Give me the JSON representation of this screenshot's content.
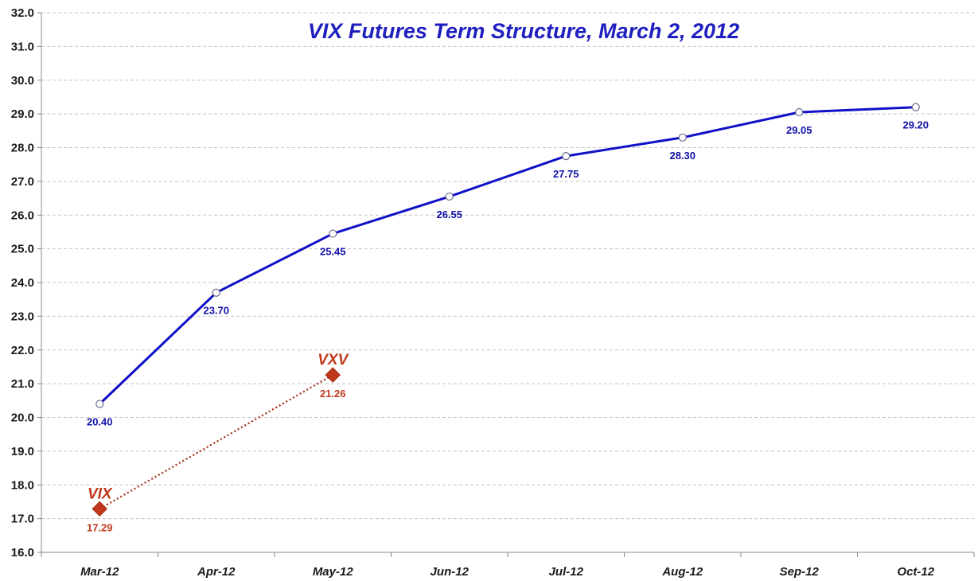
{
  "chart_data": {
    "type": "line",
    "title": "VIX Futures Term Structure, March 2, 2012",
    "categories": [
      "Mar-12",
      "Apr-12",
      "May-12",
      "Jun-12",
      "Jul-12",
      "Aug-12",
      "Sep-12",
      "Oct-12"
    ],
    "ylim": [
      16.0,
      32.0
    ],
    "ytick_step": 1.0,
    "y_ticks": [
      "16.0",
      "17.0",
      "18.0",
      "19.0",
      "20.0",
      "21.0",
      "22.0",
      "23.0",
      "24.0",
      "25.0",
      "26.0",
      "27.0",
      "28.0",
      "29.0",
      "30.0",
      "31.0",
      "32.0"
    ],
    "grid": "horizontal-dashed",
    "futures": {
      "color": "#1010c8",
      "values": [
        20.4,
        23.7,
        25.45,
        26.55,
        27.75,
        28.3,
        29.05,
        29.2
      ],
      "labels": [
        "20.40",
        "23.70",
        "25.45",
        "26.55",
        "27.75",
        "28.30",
        "29.05",
        "29.20"
      ]
    },
    "spot": {
      "color": "#c0391b",
      "points": [
        {
          "name": "VIX",
          "x": "Mar-12",
          "value": 17.29,
          "label": "17.29"
        },
        {
          "name": "VXV",
          "x": "May-12",
          "value": 21.26,
          "label": "21.26"
        }
      ]
    }
  }
}
